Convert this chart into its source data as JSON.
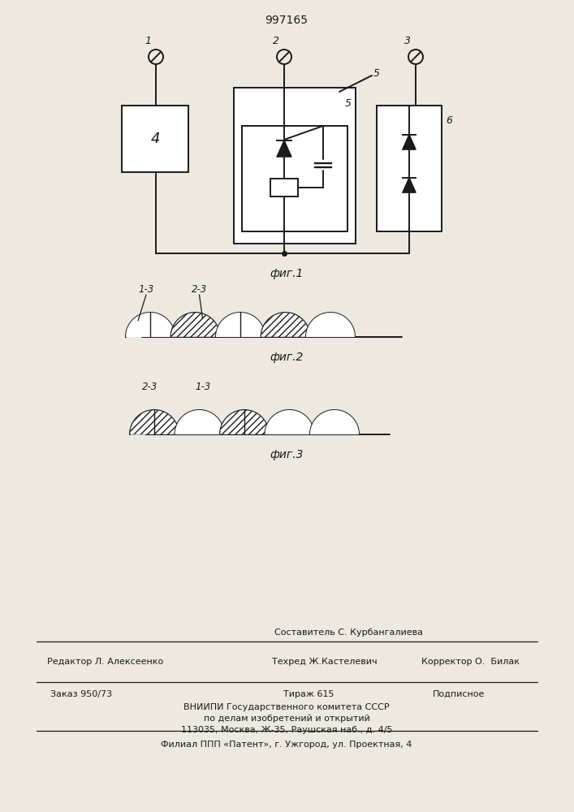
{
  "title": "997165",
  "bg_color": "#ede9e0",
  "line_color": "#1a1a1a",
  "fig1_label": "фиг.1",
  "fig2_label": "фиг.2",
  "fig3_label": "фиг.3",
  "label1": "1",
  "label2": "2",
  "label3": "3",
  "label4": "4",
  "label5": "5",
  "label6": "6",
  "label_13": "1-3",
  "label_23": "2-3",
  "footer_sestavitel": "Составитель С. Курбангалиева",
  "footer_redaktor": "Редактор Л. Алексеенко",
  "footer_tehred": "Техред Ж.Кастелевич",
  "footer_korrektor": "Корректор О.  Билак",
  "footer_zakaz": "Заказ 950/73",
  "footer_tirazh": "Тираж 615",
  "footer_podpisnoe": "Подписное",
  "footer_vniip1": "ВНИИПИ Государственного комитета СССР",
  "footer_vniip2": "по делам изобретений и открытий",
  "footer_vniip3": "113035, Москва, Ж-35, Раушская наб., д. 4/5",
  "footer_filial": "Филиал ППП «Патент», г. Ужгород, ул. Проектная, 4"
}
